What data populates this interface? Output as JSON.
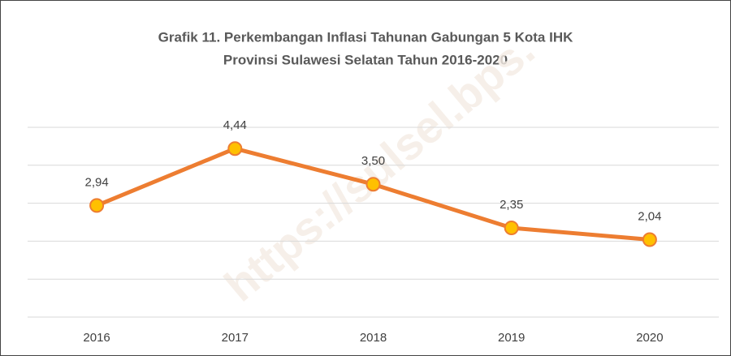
{
  "chart_data": {
    "type": "line",
    "title": [
      "Grafik 11. Perkembangan Inflasi Tahunan Gabungan 5 Kota IHK",
      "Provinsi Sulawesi Selatan Tahun 2016-2020"
    ],
    "watermark": "https://sulsel.bps.",
    "categories": [
      "2016",
      "2017",
      "2018",
      "2019",
      "2020"
    ],
    "values": [
      2.94,
      4.44,
      3.5,
      2.35,
      2.04
    ],
    "value_labels": [
      "2,94",
      "4,44",
      "3,50",
      "2,35",
      "2,04"
    ],
    "color": "#ED7D31",
    "marker_color": "#FFC000",
    "ylim": [
      0,
      5
    ],
    "yticks": [
      0,
      1,
      2,
      3,
      4,
      5
    ],
    "grid": true
  }
}
